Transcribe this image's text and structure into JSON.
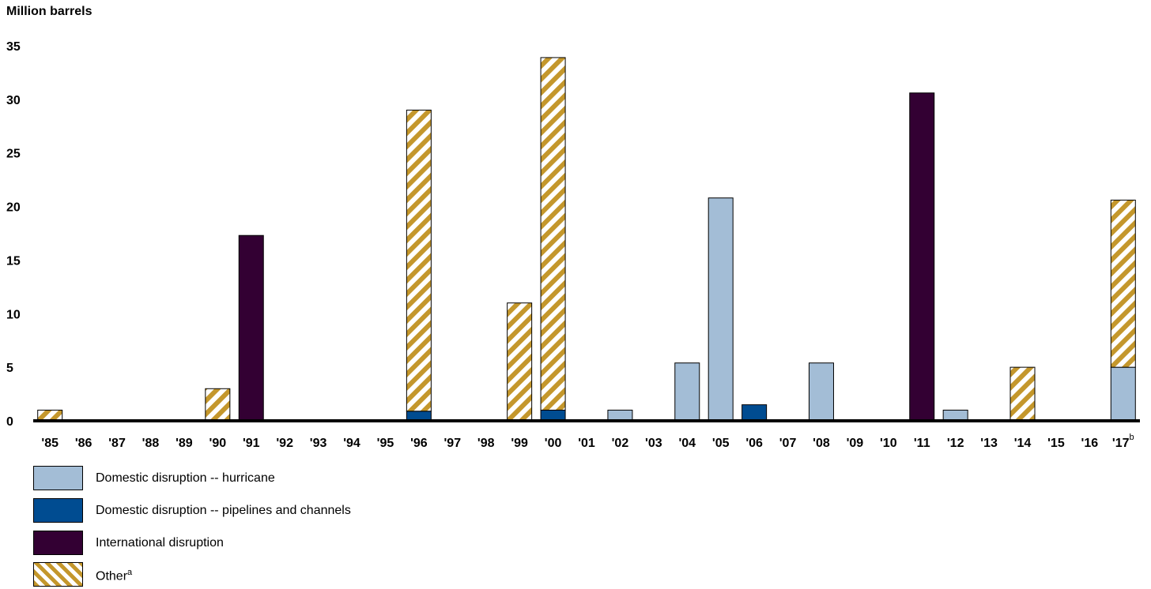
{
  "chart_data": {
    "type": "bar",
    "stacked": true,
    "ylabel": "Million barrels",
    "ylim": [
      0,
      35
    ],
    "yticks": [
      0,
      5,
      10,
      15,
      20,
      25,
      30,
      35
    ],
    "categories": [
      "'85",
      "'86",
      "'87",
      "'88",
      "'89",
      "'90",
      "'91",
      "'92",
      "'93",
      "'94",
      "'95",
      "'96",
      "'97",
      "'98",
      "'99",
      "'00",
      "'01",
      "'02",
      "'03",
      "'04",
      "'05",
      "'06",
      "'07",
      "'08",
      "'09",
      "'10",
      "'11",
      "'12",
      "'13",
      "'14",
      "'15",
      "'16",
      "'17"
    ],
    "category_superscripts": {
      "'17": "b"
    },
    "series": [
      {
        "name": "Domestic disruption -- hurricane",
        "color": "#a3bdd6",
        "pattern": "solid",
        "values": [
          0,
          0,
          0,
          0,
          0,
          0,
          0,
          0,
          0,
          0,
          0,
          0,
          0,
          0,
          0,
          0,
          0,
          1,
          0,
          5.4,
          20.8,
          0,
          0,
          5.4,
          0,
          0,
          0,
          1,
          0,
          0,
          0,
          0,
          5
        ]
      },
      {
        "name": "Domestic disruption -- pipelines and channels",
        "color": "#004c91",
        "pattern": "solid",
        "values": [
          0,
          0,
          0,
          0,
          0,
          0,
          0,
          0,
          0,
          0,
          0,
          0.9,
          0,
          0,
          0,
          1,
          0,
          0,
          0,
          0,
          0,
          1.5,
          0,
          0,
          0,
          0,
          0,
          0,
          0,
          0,
          0,
          0,
          0
        ]
      },
      {
        "name": "International disruption",
        "color": "#330033",
        "pattern": "solid",
        "values": [
          0,
          0,
          0,
          0,
          0,
          0,
          17.3,
          0,
          0,
          0,
          0,
          0,
          0,
          0,
          0,
          0,
          0,
          0,
          0,
          0,
          0,
          0,
          0,
          0,
          0,
          0,
          30.6,
          0,
          0,
          0,
          0,
          0,
          0
        ]
      },
      {
        "name": "Other",
        "name_superscript": "a",
        "color": "#c4972c",
        "pattern": "hatch",
        "values": [
          1,
          0,
          0,
          0,
          0,
          3,
          0,
          0,
          0,
          0,
          0,
          28.1,
          0,
          0,
          11,
          32.9,
          0,
          0,
          0,
          0,
          0,
          0,
          0,
          0,
          0,
          0,
          0,
          0,
          0,
          5,
          0,
          0,
          15.6
        ]
      }
    ],
    "legend_position": "bottom-left",
    "grid": false
  }
}
